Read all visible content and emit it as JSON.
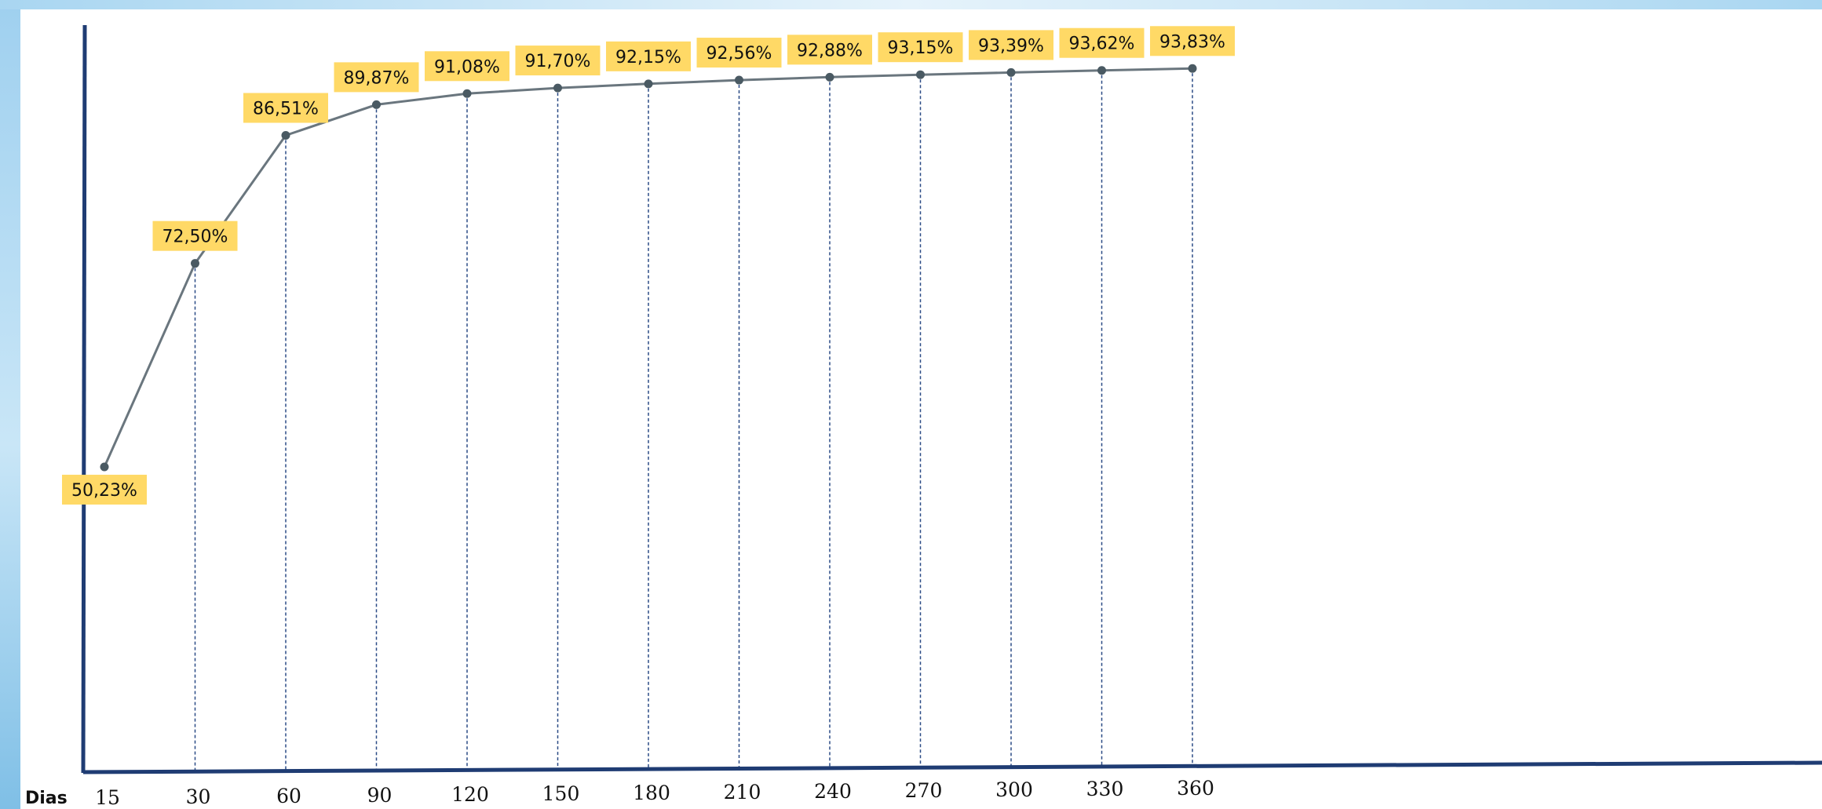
{
  "chart_data": {
    "type": "line",
    "xlabel": "Dias",
    "ylabel": "",
    "categories": [
      "15",
      "30",
      "60",
      "90",
      "120",
      "150",
      "180",
      "210",
      "240",
      "270",
      "300",
      "330",
      "360"
    ],
    "values": [
      50.23,
      72.5,
      86.51,
      89.87,
      91.08,
      91.7,
      92.15,
      92.56,
      92.88,
      93.15,
      93.39,
      93.62,
      93.83
    ],
    "value_labels": [
      "50,23%",
      "72,50%",
      "86,51%",
      "89,87%",
      "91,08%",
      "91,70%",
      "92,15%",
      "92,56%",
      "92,88%",
      "93,15%",
      "93,39%",
      "93,62%",
      "93,83%"
    ],
    "ylim": [
      48,
      96
    ],
    "grid": false,
    "legend": "none",
    "colors": {
      "line": "#6a767e",
      "point": "#4a5a63",
      "axis": "#1f3c73",
      "guide": "#2b4b86",
      "label_background": "#ffd966"
    }
  }
}
